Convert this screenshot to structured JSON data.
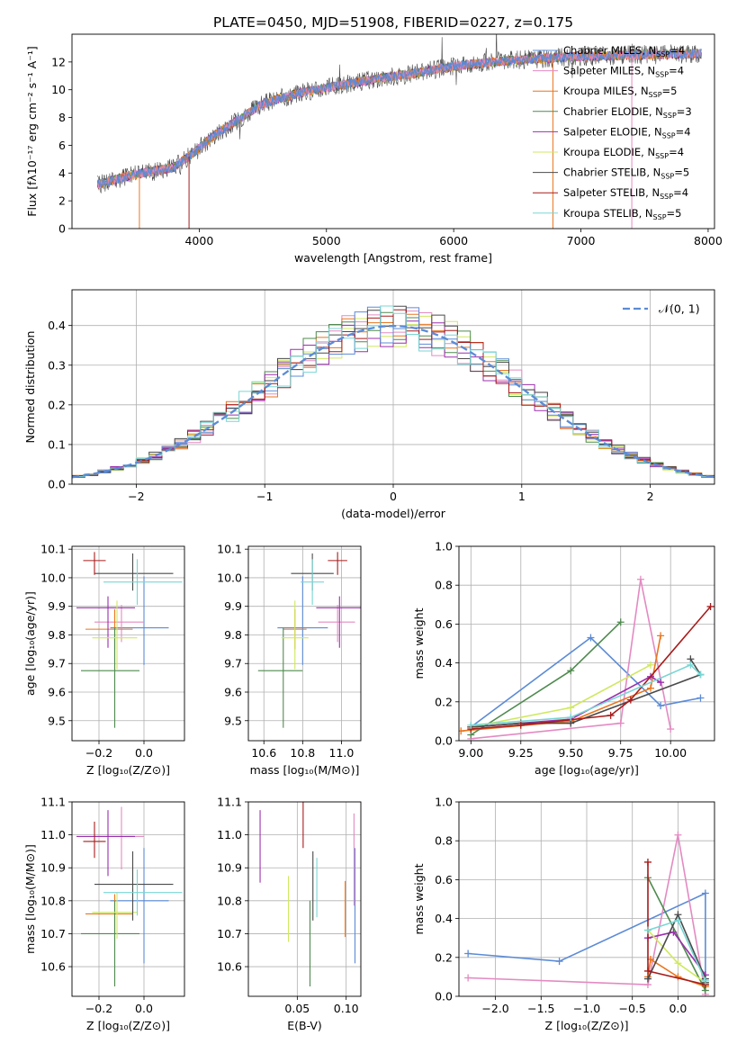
{
  "figure": {
    "title": "PLATE=0450, MJD=51908, FIBERID=0227, z=0.175"
  },
  "colors": {
    "Chabrier MILES": "#5b8bd6",
    "Salpeter MILES": "#e38ac2",
    "Kroupa MILES": "#e8761f",
    "Chabrier ELODIE": "#4f8a4f",
    "Salpeter ELODIE": "#9b2fae",
    "Kroupa ELODIE": "#cfe85f",
    "Chabrier STELIB": "#4a4a4a",
    "Salpeter STELIB": "#a81b1b",
    "Kroupa STELIB": "#79d6d4"
  },
  "chart_data": [
    {
      "id": "spectrum",
      "type": "line",
      "xlabel": "wavelength [Angstrom, rest frame]",
      "ylabel": "Flux [fλ10⁻¹⁷ erg cm⁻² s⁻¹ A⁻¹]",
      "xlim": [
        3000,
        8050
      ],
      "ylim": [
        0,
        14
      ],
      "xticks": [
        4000,
        5000,
        6000,
        7000,
        8000
      ],
      "yticks": [
        0,
        2,
        4,
        6,
        8,
        10,
        12
      ],
      "grid": false,
      "legend_position": "right",
      "data_anchor_x": [
        3200,
        3500,
        3800,
        3950,
        4100,
        4300,
        4500,
        4800,
        5100,
        5400,
        5700,
        6000,
        6300,
        6600,
        7000,
        7400,
        7900
      ],
      "data_anchor_y": [
        3.2,
        3.9,
        4.4,
        5.4,
        6.6,
        7.8,
        9.0,
        9.8,
        10.3,
        10.8,
        11.2,
        11.7,
        12.0,
        12.2,
        12.4,
        12.5,
        12.6
      ],
      "series": [
        {
          "name": "Chabrier MILES, N_SSP=4",
          "label_main": "Chabrier MILES, N",
          "label_sub": "SSP",
          "label_tail": "=4"
        },
        {
          "name": "Salpeter MILES, N_SSP=4",
          "label_main": "Salpeter MILES, N",
          "label_sub": "SSP",
          "label_tail": "=4"
        },
        {
          "name": "Kroupa MILES, N_SSP=5",
          "label_main": "Kroupa MILES, N",
          "label_sub": "SSP",
          "label_tail": "=5"
        },
        {
          "name": "Chabrier ELODIE, N_SSP=3",
          "label_main": "Chabrier ELODIE, N",
          "label_sub": "SSP",
          "label_tail": "=3"
        },
        {
          "name": "Salpeter ELODIE, N_SSP=4",
          "label_main": "Salpeter ELODIE, N",
          "label_sub": "SSP",
          "label_tail": "=4"
        },
        {
          "name": "Kroupa ELODIE, N_SSP=4",
          "label_main": "Kroupa ELODIE, N",
          "label_sub": "SSP",
          "label_tail": "=4"
        },
        {
          "name": "Chabrier STELIB, N_SSP=5",
          "label_main": "Chabrier STELIB, N",
          "label_sub": "SSP",
          "label_tail": "=5"
        },
        {
          "name": "Salpeter STELIB, N_SSP=4",
          "label_main": "Salpeter STELIB, N",
          "label_sub": "SSP",
          "label_tail": "=4"
        },
        {
          "name": "Kroupa STELIB, N_SSP=5",
          "label_main": "Kroupa STELIB, N",
          "label_sub": "SSP",
          "label_tail": "=5"
        }
      ]
    },
    {
      "id": "residuals",
      "type": "line",
      "xlabel": "(data-model)/error",
      "ylabel": "Normed distribution",
      "xlim": [
        -2.5,
        2.5
      ],
      "ylim": [
        0,
        0.49
      ],
      "xticks": [
        -2,
        -1,
        0,
        1,
        2
      ],
      "yticks": [
        0.0,
        0.1,
        0.2,
        0.3,
        0.4
      ],
      "grid": true,
      "legend_position": "top-right",
      "legend": "𝒩(0, 1)",
      "bin_width": 0.1,
      "reference": "normal(0,1)"
    },
    {
      "id": "age_vs_Z",
      "type": "scatter",
      "xlabel": "Z [log₁₀(Z/Z⊙)]",
      "ylabel": "age  [log₁₀(age/yr)]",
      "xlim": [
        -0.32,
        0.18
      ],
      "ylim": [
        9.43,
        10.11
      ],
      "xticks": [
        -0.2,
        0.0
      ],
      "yticks": [
        9.5,
        9.6,
        9.7,
        9.8,
        9.9,
        10.0,
        10.1
      ],
      "grid": true,
      "points": [
        {
          "series": "Chabrier MILES",
          "x": 0.0,
          "y": 9.825,
          "xerr": [
            0.15,
            0.11
          ],
          "yerr": [
            0.13,
            0.18
          ]
        },
        {
          "series": "Salpeter MILES",
          "x": -0.1,
          "y": 9.845,
          "xerr": [
            0.12,
            0.1
          ],
          "yerr": [
            0.07,
            0.06
          ]
        },
        {
          "series": "Kroupa MILES",
          "x": -0.13,
          "y": 9.82,
          "xerr": [
            0.13,
            0.08
          ],
          "yerr": [
            0.07,
            0.07
          ]
        },
        {
          "series": "Chabrier ELODIE",
          "x": -0.13,
          "y": 9.675,
          "xerr": [
            0.15,
            0.11
          ],
          "yerr": [
            0.2,
            0.15
          ]
        },
        {
          "series": "Salpeter ELODIE",
          "x": -0.16,
          "y": 9.895,
          "xerr": [
            0.14,
            0.12
          ],
          "yerr": [
            0.14,
            0.04
          ]
        },
        {
          "series": "Kroupa ELODIE",
          "x": -0.12,
          "y": 9.79,
          "xerr": [
            0.11,
            0.09
          ],
          "yerr": [
            0.11,
            0.13
          ]
        },
        {
          "series": "Chabrier STELIB",
          "x": -0.05,
          "y": 10.015,
          "xerr": [
            0.17,
            0.18
          ],
          "yerr": [
            0.06,
            0.07
          ]
        },
        {
          "series": "Salpeter STELIB",
          "x": -0.22,
          "y": 10.06,
          "xerr": [
            0.05,
            0.05
          ],
          "yerr": [
            0.05,
            0.03
          ]
        },
        {
          "series": "Kroupa STELIB",
          "x": -0.03,
          "y": 9.985,
          "xerr": [
            0.15,
            0.2
          ],
          "yerr": [
            0.08,
            0.08
          ]
        }
      ]
    },
    {
      "id": "age_vs_mass",
      "type": "scatter",
      "xlabel": "mass [log₁₀(M/M⊙)]",
      "ylabel": "",
      "xlim": [
        10.52,
        11.1
      ],
      "ylim": [
        9.43,
        10.11
      ],
      "xticks": [
        10.6,
        10.8,
        11.0
      ],
      "yticks": [
        9.5,
        9.6,
        9.7,
        9.8,
        9.9,
        10.0,
        10.1
      ],
      "grid": true,
      "points": [
        {
          "series": "Chabrier MILES",
          "x": 10.8,
          "y": 9.825,
          "xerr": [
            0.13,
            0.13
          ],
          "yerr": [
            0.13,
            0.18
          ]
        },
        {
          "series": "Salpeter MILES",
          "x": 10.98,
          "y": 9.845,
          "xerr": [
            0.1,
            0.09
          ],
          "yerr": [
            0.07,
            0.06
          ]
        },
        {
          "series": "Kroupa MILES",
          "x": 10.76,
          "y": 9.82,
          "xerr": [
            0.06,
            0.06
          ],
          "yerr": [
            0.07,
            0.07
          ]
        },
        {
          "series": "Chabrier ELODIE",
          "x": 10.7,
          "y": 9.675,
          "xerr": [
            0.13,
            0.1
          ],
          "yerr": [
            0.2,
            0.15
          ]
        },
        {
          "series": "Salpeter ELODIE",
          "x": 10.99,
          "y": 9.895,
          "xerr": [
            0.12,
            0.11
          ],
          "yerr": [
            0.14,
            0.04
          ]
        },
        {
          "series": "Kroupa ELODIE",
          "x": 10.76,
          "y": 9.79,
          "xerr": [
            0.07,
            0.07
          ],
          "yerr": [
            0.11,
            0.13
          ]
        },
        {
          "series": "Chabrier STELIB",
          "x": 10.85,
          "y": 10.015,
          "xerr": [
            0.11,
            0.11
          ],
          "yerr": [
            0.06,
            0.07
          ]
        },
        {
          "series": "Salpeter STELIB",
          "x": 10.98,
          "y": 10.06,
          "xerr": [
            0.05,
            0.05
          ],
          "yerr": [
            0.05,
            0.03
          ]
        },
        {
          "series": "Kroupa STELIB",
          "x": 10.85,
          "y": 9.985,
          "xerr": [
            0.06,
            0.06
          ],
          "yerr": [
            0.08,
            0.08
          ]
        }
      ]
    },
    {
      "id": "mass_weight_vs_age",
      "type": "line",
      "xlabel": "age  [log₁₀(age/yr)]",
      "ylabel": "mass weight",
      "xlim": [
        8.94,
        10.22
      ],
      "ylim": [
        0.0,
        1.0
      ],
      "xticks": [
        9.0,
        9.25,
        9.5,
        9.75,
        10.0
      ],
      "yticks": [
        0.0,
        0.2,
        0.4,
        0.6,
        0.8,
        1.0
      ],
      "grid": true,
      "series": [
        {
          "name": "Chabrier MILES",
          "x": [
            9.0,
            9.6,
            9.95,
            10.15
          ],
          "y": [
            0.07,
            0.53,
            0.18,
            0.22
          ]
        },
        {
          "name": "Salpeter MILES",
          "x": [
            9.0,
            9.75,
            9.85,
            10.0
          ],
          "y": [
            0.01,
            0.09,
            0.83,
            0.06
          ]
        },
        {
          "name": "Kroupa MILES",
          "x": [
            8.95,
            9.5,
            9.9,
            9.95
          ],
          "y": [
            0.05,
            0.1,
            0.27,
            0.54
          ]
        },
        {
          "name": "Chabrier ELODIE",
          "x": [
            9.0,
            9.5,
            9.75
          ],
          "y": [
            0.03,
            0.36,
            0.61
          ]
        },
        {
          "name": "Salpeter ELODIE",
          "x": [
            9.0,
            9.5,
            9.9,
            9.95
          ],
          "y": [
            0.07,
            0.11,
            0.33,
            0.3
          ]
        },
        {
          "name": "Kroupa ELODIE",
          "x": [
            9.0,
            9.5,
            9.9
          ],
          "y": [
            0.07,
            0.17,
            0.39
          ]
        },
        {
          "name": "Chabrier STELIB",
          "x": [
            9.0,
            9.25,
            9.5,
            10.15,
            10.1
          ],
          "y": [
            0.07,
            0.09,
            0.09,
            0.34,
            0.42
          ]
        },
        {
          "name": "Salpeter STELIB",
          "x": [
            9.0,
            9.25,
            9.7,
            9.8,
            10.2
          ],
          "y": [
            0.06,
            0.08,
            0.13,
            0.21,
            0.69
          ]
        },
        {
          "name": "Kroupa STELIB",
          "x": [
            9.0,
            9.5,
            10.1,
            10.15
          ],
          "y": [
            0.08,
            0.12,
            0.39,
            0.34
          ]
        }
      ]
    },
    {
      "id": "mass_vs_Z",
      "type": "scatter",
      "xlabel": "Z [log₁₀(Z/Z⊙)]",
      "ylabel": "mass [log₁₀(M/M⊙)]",
      "xlim": [
        -0.32,
        0.18
      ],
      "ylim": [
        10.51,
        11.1
      ],
      "xticks": [
        -0.2,
        0.0
      ],
      "yticks": [
        10.6,
        10.7,
        10.8,
        10.9,
        11.0,
        11.1
      ],
      "grid": true,
      "points": [
        {
          "series": "Chabrier MILES",
          "x": 0.0,
          "y": 10.8,
          "xerr": [
            0.15,
            0.11
          ],
          "yerr": [
            0.19,
            0.16
          ]
        },
        {
          "series": "Salpeter MILES",
          "x": -0.1,
          "y": 10.995,
          "xerr": [
            0.12,
            0.1
          ],
          "yerr": [
            0.1,
            0.09
          ]
        },
        {
          "series": "Kroupa MILES",
          "x": -0.13,
          "y": 10.76,
          "xerr": [
            0.13,
            0.08
          ],
          "yerr": [
            0.06,
            0.06
          ]
        },
        {
          "series": "Chabrier ELODIE",
          "x": -0.13,
          "y": 10.7,
          "xerr": [
            0.15,
            0.11
          ],
          "yerr": [
            0.16,
            0.1
          ]
        },
        {
          "series": "Salpeter ELODIE",
          "x": -0.16,
          "y": 10.995,
          "xerr": [
            0.14,
            0.12
          ],
          "yerr": [
            0.12,
            0.08
          ]
        },
        {
          "series": "Kroupa ELODIE",
          "x": -0.12,
          "y": 10.765,
          "xerr": [
            0.11,
            0.09
          ],
          "yerr": [
            0.08,
            0.06
          ]
        },
        {
          "series": "Chabrier STELIB",
          "x": -0.05,
          "y": 10.85,
          "xerr": [
            0.17,
            0.18
          ],
          "yerr": [
            0.11,
            0.1
          ]
        },
        {
          "series": "Salpeter STELIB",
          "x": -0.22,
          "y": 10.98,
          "xerr": [
            0.05,
            0.05
          ],
          "yerr": [
            0.05,
            0.06
          ]
        },
        {
          "series": "Kroupa STELIB",
          "x": -0.03,
          "y": 10.825,
          "xerr": [
            0.15,
            0.2
          ],
          "yerr": [
            0.07,
            0.07
          ]
        }
      ]
    },
    {
      "id": "mass_vs_ebv",
      "type": "scatter",
      "xlabel": "E(B-V)",
      "ylabel": "",
      "xlim": [
        0.0,
        0.115
      ],
      "ylim": [
        10.51,
        11.1
      ],
      "xticks": [
        0.05,
        0.1
      ],
      "yticks": [
        10.6,
        10.7,
        10.8,
        10.9,
        11.0,
        11.1
      ],
      "grid": true,
      "points": [
        {
          "series": "Chabrier MILES",
          "x": 0.109,
          "y": 10.8,
          "xerr": [
            0,
            0
          ],
          "yerr": [
            0.19,
            0.16
          ]
        },
        {
          "series": "Salpeter MILES",
          "x": 0.108,
          "y": 10.935,
          "xerr": [
            0,
            0
          ],
          "yerr": [
            0.15,
            0.13
          ]
        },
        {
          "series": "Kroupa MILES",
          "x": 0.099,
          "y": 10.76,
          "xerr": [
            0,
            0
          ],
          "yerr": [
            0.07,
            0.1
          ]
        },
        {
          "series": "Chabrier ELODIE",
          "x": 0.063,
          "y": 10.7,
          "xerr": [
            0,
            0
          ],
          "yerr": [
            0.16,
            0.1
          ]
        },
        {
          "series": "Salpeter ELODIE",
          "x": 0.012,
          "y": 10.965,
          "xerr": [
            0,
            0
          ],
          "yerr": [
            0.11,
            0.11
          ]
        },
        {
          "series": "Kroupa ELODIE",
          "x": 0.041,
          "y": 10.775,
          "xerr": [
            0,
            0
          ],
          "yerr": [
            0.1,
            0.1
          ]
        },
        {
          "series": "Chabrier STELIB",
          "x": 0.066,
          "y": 10.85,
          "xerr": [
            0,
            0
          ],
          "yerr": [
            0.11,
            0.1
          ]
        },
        {
          "series": "Salpeter STELIB",
          "x": 0.056,
          "y": 11.03,
          "xerr": [
            0,
            0
          ],
          "yerr": [
            0.07,
            0.07
          ]
        },
        {
          "series": "Kroupa STELIB",
          "x": 0.07,
          "y": 10.84,
          "xerr": [
            0,
            0
          ],
          "yerr": [
            0.09,
            0.09
          ]
        }
      ]
    },
    {
      "id": "mass_weight_vs_Z",
      "type": "line",
      "xlabel": "Z [log₁₀(Z/Z⊙)]",
      "ylabel": "mass weight",
      "xlim": [
        -2.4,
        0.4
      ],
      "ylim": [
        0.0,
        1.0
      ],
      "xticks": [
        -2.0,
        -1.5,
        -1.0,
        -0.5,
        0.0
      ],
      "yticks": [
        0.0,
        0.2,
        0.4,
        0.6,
        0.8,
        1.0
      ],
      "grid": true,
      "series": [
        {
          "name": "Chabrier MILES",
          "x": [
            -2.3,
            -1.3,
            0.3,
            0.3
          ],
          "y": [
            0.22,
            0.18,
            0.53,
            0.07
          ]
        },
        {
          "name": "Salpeter MILES",
          "x": [
            -2.3,
            -0.33,
            0.0,
            0.3
          ],
          "y": [
            0.095,
            0.06,
            0.83,
            0.01
          ]
        },
        {
          "name": "Kroupa MILES",
          "x": [
            -0.33,
            -0.3,
            0.0,
            0.3
          ],
          "y": [
            0.1,
            0.19,
            0.1,
            0.05
          ]
        },
        {
          "name": "Chabrier ELODIE",
          "x": [
            -0.33,
            0.3,
            0.3
          ],
          "y": [
            0.61,
            0.03,
            0.06
          ]
        },
        {
          "name": "Salpeter ELODIE",
          "x": [
            -0.33,
            -0.05,
            0.3,
            0.3
          ],
          "y": [
            0.3,
            0.33,
            0.11,
            0.07
          ]
        },
        {
          "name": "Kroupa ELODIE",
          "x": [
            -0.33,
            0.0,
            0.3
          ],
          "y": [
            0.34,
            0.17,
            0.07
          ]
        },
        {
          "name": "Chabrier STELIB",
          "x": [
            -0.33,
            0.0,
            0.3,
            0.3
          ],
          "y": [
            0.09,
            0.42,
            0.09,
            0.07
          ]
        },
        {
          "name": "Salpeter STELIB",
          "x": [
            -0.33,
            -0.33,
            0.3
          ],
          "y": [
            0.69,
            0.13,
            0.06
          ]
        },
        {
          "name": "Kroupa STELIB",
          "x": [
            -0.33,
            0.0,
            0.3
          ],
          "y": [
            0.34,
            0.39,
            0.08
          ]
        }
      ]
    }
  ]
}
